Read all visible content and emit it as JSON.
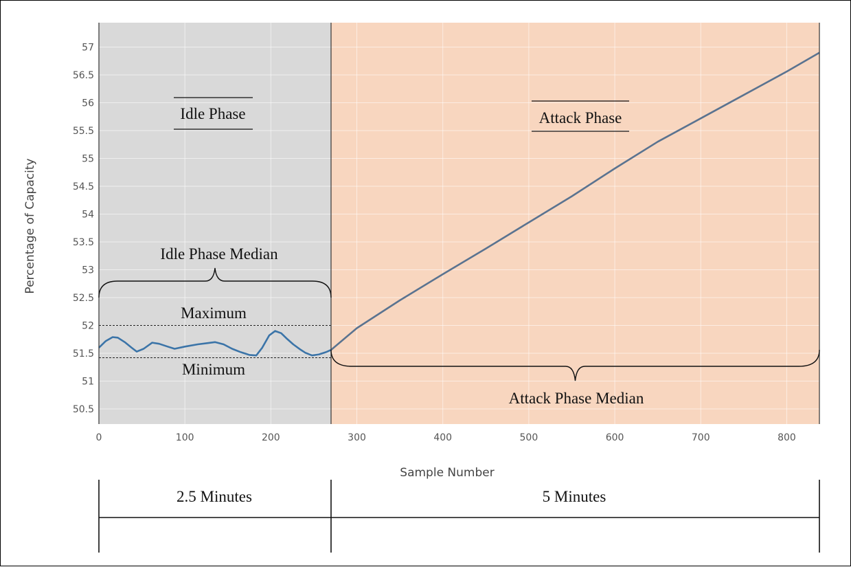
{
  "chart_data": {
    "type": "line",
    "xlabel": "Sample Number",
    "ylabel": "Percentage of Capacity",
    "xlim": [
      0,
      838
    ],
    "ylim": [
      50.2,
      57.3
    ],
    "x_ticks": [
      0,
      100,
      200,
      300,
      400,
      500,
      600,
      700,
      800
    ],
    "y_ticks": [
      50.5,
      51,
      51.5,
      52,
      52.5,
      53,
      53.5,
      54,
      54.5,
      55,
      55.5,
      56,
      56.5,
      57
    ],
    "grid": true,
    "series": [
      {
        "x": [
          0,
          8,
          16,
          22,
          30,
          38,
          44,
          52,
          62,
          70,
          80,
          88,
          100,
          115,
          125,
          135,
          145,
          155,
          165,
          175,
          183,
          190,
          198,
          205,
          212,
          218,
          226,
          234,
          240,
          248,
          256,
          264,
          270
        ],
        "y": [
          51.6,
          51.72,
          51.79,
          51.78,
          51.7,
          51.6,
          51.53,
          51.58,
          51.69,
          51.67,
          51.62,
          51.58,
          51.62,
          51.66,
          51.68,
          51.7,
          51.66,
          51.58,
          51.52,
          51.47,
          51.46,
          51.6,
          51.82,
          51.9,
          51.86,
          51.77,
          51.66,
          51.57,
          51.51,
          51.46,
          51.48,
          51.52,
          51.56
        ]
      },
      {
        "x": [
          270,
          300,
          350,
          400,
          450,
          500,
          550,
          600,
          650,
          700,
          750,
          800,
          838
        ],
        "y": [
          51.56,
          51.95,
          52.45,
          52.92,
          53.38,
          53.85,
          54.32,
          54.82,
          55.3,
          55.72,
          56.14,
          56.56,
          56.9
        ]
      }
    ],
    "phases": [
      {
        "label": "Idle Phase",
        "x_range": [
          0,
          270
        ],
        "color": "#d9d9d9"
      },
      {
        "label": "Attack Phase",
        "x_range": [
          270,
          838
        ],
        "color": "#f8d6bf"
      }
    ],
    "reference_lines": [
      {
        "label": "Maximum",
        "y": 52.0
      },
      {
        "label": "Minimum",
        "y": 51.42
      }
    ],
    "brace_labels": {
      "idle": "Idle Phase Median",
      "attack": "Attack Phase Median"
    },
    "durations": {
      "idle": "2.5 Minutes",
      "attack": "5 Minutes"
    },
    "colors": {
      "idle_line": "#3b74a8",
      "attack_line": "#5a7390",
      "idle_bg": "#d9d9d9",
      "attack_bg": "#f8d6bf"
    }
  }
}
